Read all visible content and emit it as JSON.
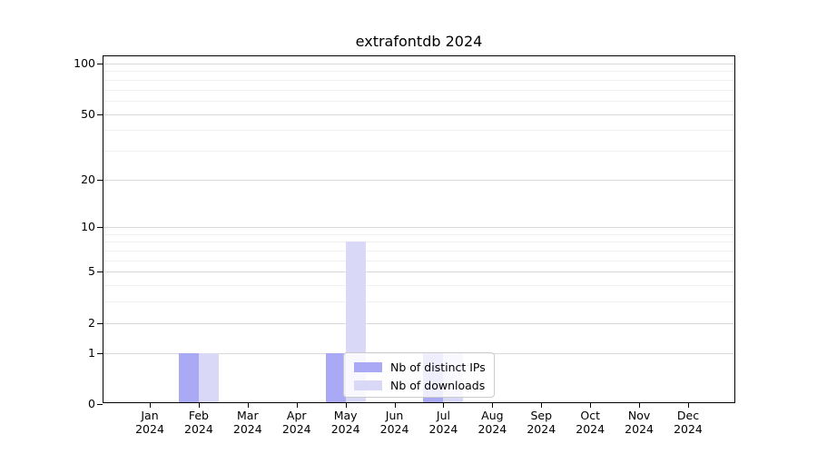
{
  "chart_data": {
    "type": "bar",
    "title": "extrafontdb 2024",
    "categories": [
      "Jan 2024",
      "Feb 2024",
      "Mar 2024",
      "Apr 2024",
      "May 2024",
      "Jun 2024",
      "Jul 2024",
      "Aug 2024",
      "Sep 2024",
      "Oct 2024",
      "Nov 2024",
      "Dec 2024"
    ],
    "series": [
      {
        "name": "Nb of distinct IPs",
        "color": "#a9a9f5",
        "values": [
          0,
          1,
          0,
          0,
          1,
          0,
          1,
          0,
          0,
          0,
          0,
          0
        ]
      },
      {
        "name": "Nb of downloads",
        "color": "#d9d9f7",
        "values": [
          0,
          1,
          0,
          0,
          8,
          0,
          1,
          0,
          0,
          0,
          0,
          0
        ]
      }
    ],
    "y_axis": {
      "scale": "log10(1+y)",
      "major_ticks": [
        0,
        1,
        2,
        5,
        10,
        20,
        50,
        100
      ],
      "minor_ticks": [
        3,
        4,
        6,
        7,
        8,
        9,
        30,
        40,
        60,
        70,
        80,
        90
      ],
      "top_value": 100
    },
    "legend": {
      "position": "lower center"
    },
    "grid": true
  }
}
